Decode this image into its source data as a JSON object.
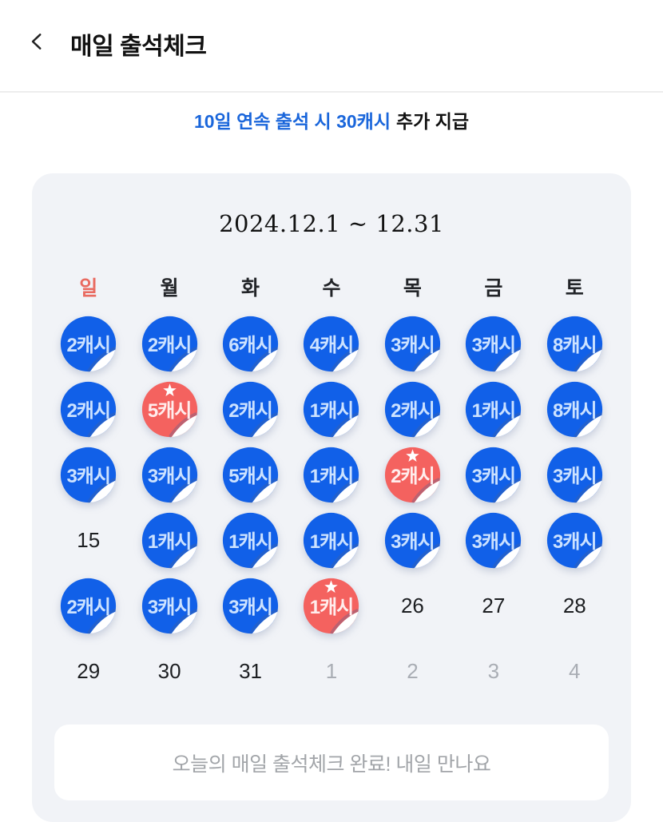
{
  "header": {
    "title": "매일 출석체크",
    "back_icon": "chevron-left"
  },
  "banner": {
    "highlight": "10일 연속 출석 시 30캐시",
    "suffix": "추가 지급"
  },
  "calendar": {
    "range_title": "2024.12.1 ~ 12.31",
    "weekdays": [
      "일",
      "월",
      "화",
      "수",
      "목",
      "금",
      "토"
    ],
    "cells": [
      {
        "type": "sticker",
        "variant": "blue",
        "label": "2캐시"
      },
      {
        "type": "sticker",
        "variant": "blue",
        "label": "2캐시"
      },
      {
        "type": "sticker",
        "variant": "blue",
        "label": "6캐시"
      },
      {
        "type": "sticker",
        "variant": "blue",
        "label": "4캐시"
      },
      {
        "type": "sticker",
        "variant": "blue",
        "label": "3캐시"
      },
      {
        "type": "sticker",
        "variant": "blue",
        "label": "3캐시"
      },
      {
        "type": "sticker",
        "variant": "blue",
        "label": "8캐시"
      },
      {
        "type": "sticker",
        "variant": "blue",
        "label": "2캐시"
      },
      {
        "type": "sticker",
        "variant": "red",
        "star": true,
        "label": "5캐시"
      },
      {
        "type": "sticker",
        "variant": "blue",
        "label": "2캐시"
      },
      {
        "type": "sticker",
        "variant": "blue",
        "label": "1캐시"
      },
      {
        "type": "sticker",
        "variant": "blue",
        "label": "2캐시"
      },
      {
        "type": "sticker",
        "variant": "blue",
        "label": "1캐시"
      },
      {
        "type": "sticker",
        "variant": "blue",
        "label": "8캐시"
      },
      {
        "type": "sticker",
        "variant": "blue",
        "label": "3캐시"
      },
      {
        "type": "sticker",
        "variant": "blue",
        "label": "3캐시"
      },
      {
        "type": "sticker",
        "variant": "blue",
        "label": "5캐시"
      },
      {
        "type": "sticker",
        "variant": "blue",
        "label": "1캐시"
      },
      {
        "type": "sticker",
        "variant": "red",
        "star": true,
        "label": "2캐시"
      },
      {
        "type": "sticker",
        "variant": "blue",
        "label": "3캐시"
      },
      {
        "type": "sticker",
        "variant": "blue",
        "label": "3캐시"
      },
      {
        "type": "day",
        "label": "15"
      },
      {
        "type": "sticker",
        "variant": "blue",
        "label": "1캐시"
      },
      {
        "type": "sticker",
        "variant": "blue",
        "label": "1캐시"
      },
      {
        "type": "sticker",
        "variant": "blue",
        "label": "1캐시"
      },
      {
        "type": "sticker",
        "variant": "blue",
        "label": "3캐시"
      },
      {
        "type": "sticker",
        "variant": "blue",
        "label": "3캐시"
      },
      {
        "type": "sticker",
        "variant": "blue",
        "label": "3캐시"
      },
      {
        "type": "sticker",
        "variant": "blue",
        "label": "2캐시"
      },
      {
        "type": "sticker",
        "variant": "blue",
        "label": "3캐시"
      },
      {
        "type": "sticker",
        "variant": "blue",
        "label": "3캐시"
      },
      {
        "type": "sticker",
        "variant": "red",
        "star": true,
        "label": "1캐시"
      },
      {
        "type": "day",
        "label": "26"
      },
      {
        "type": "day",
        "label": "27"
      },
      {
        "type": "day",
        "label": "28"
      },
      {
        "type": "day",
        "label": "29"
      },
      {
        "type": "day",
        "label": "30"
      },
      {
        "type": "day",
        "label": "31"
      },
      {
        "type": "day",
        "muted": true,
        "label": "1"
      },
      {
        "type": "day",
        "muted": true,
        "label": "2"
      },
      {
        "type": "day",
        "muted": true,
        "label": "3"
      },
      {
        "type": "day",
        "muted": true,
        "label": "4"
      }
    ],
    "footer_message": "오늘의 매일 출석체크 완료! 내일 만나요"
  },
  "colors": {
    "sticker_blue": "#1160e8",
    "sticker_red": "#f4625f",
    "sticker_text_blue": "#cce2ff",
    "sticker_text_red": "#ffeded",
    "banner_highlight": "#1a66db",
    "sunday": "#e96a60",
    "card_bg": "#f1f3f7"
  }
}
